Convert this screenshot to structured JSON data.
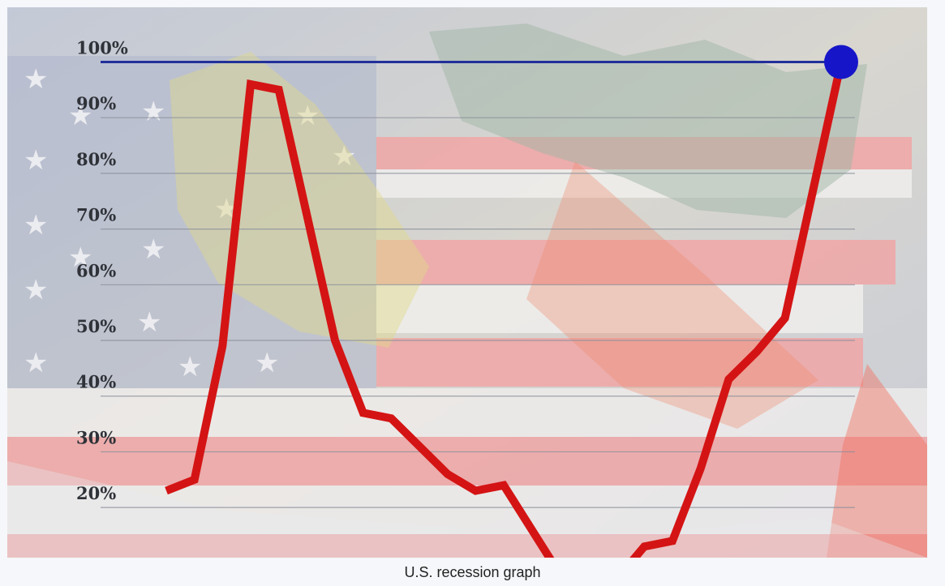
{
  "caption": "U.S. recession graph",
  "colors": {
    "line": "#d41414",
    "reference_line": "#22309a",
    "end_marker": "#1616c8",
    "gridline": "#8a8f9a"
  },
  "background": "american-flag-and-us-map-illustration",
  "chart_data": {
    "type": "line",
    "title": "",
    "xlabel": "",
    "ylabel": "",
    "y_tick_labels": [
      "100%",
      "90%",
      "80%",
      "70%",
      "60%",
      "50%",
      "40%",
      "30%",
      "20%"
    ],
    "y_ticks": [
      100,
      90,
      80,
      70,
      60,
      50,
      40,
      30,
      20
    ],
    "ylim": [
      11,
      104
    ],
    "xlim": [
      0,
      24
    ],
    "grid": true,
    "reference_line": {
      "y": 100
    },
    "end_marker": "circle",
    "series": [
      {
        "values": [
          [
            0,
            23
          ],
          [
            1,
            25
          ],
          [
            2,
            49
          ],
          [
            3,
            96
          ],
          [
            4,
            95
          ],
          [
            6,
            50
          ],
          [
            7,
            37
          ],
          [
            8,
            36
          ],
          [
            10,
            26
          ],
          [
            11,
            23
          ],
          [
            12,
            24
          ],
          [
            14,
            8
          ],
          [
            16,
            7
          ],
          [
            17,
            13
          ],
          [
            18,
            14
          ],
          [
            19,
            27
          ],
          [
            20,
            43
          ],
          [
            21,
            48
          ],
          [
            22,
            54
          ],
          [
            24,
            100
          ]
        ]
      }
    ]
  }
}
